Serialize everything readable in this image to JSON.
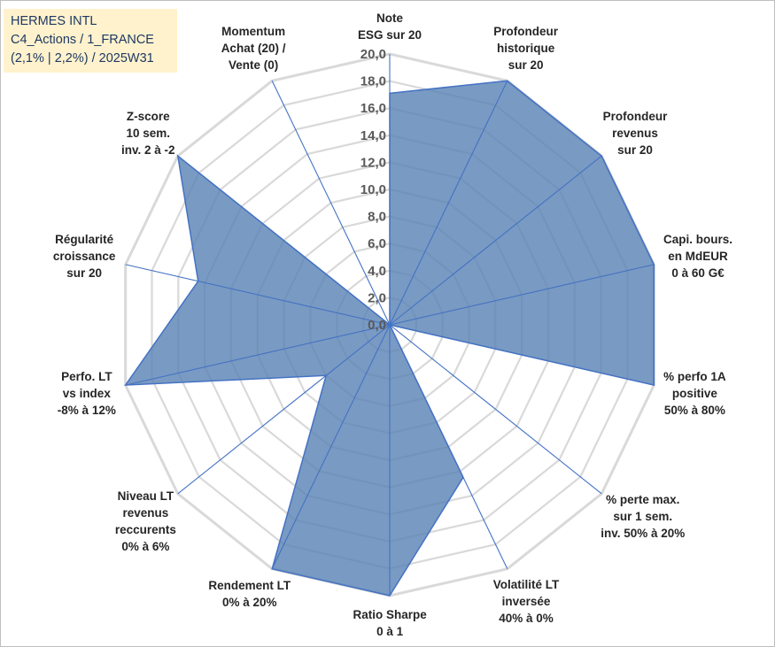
{
  "info": {
    "line1": "HERMES INTL",
    "line2": "C4_Actions / 1_FRANCE",
    "line3": "(2,1% | 2,2%) / 2025W31"
  },
  "chart_data": {
    "type": "radar",
    "rmin": 0,
    "rmax": 20,
    "tick_step": 2,
    "tick_labels": [
      "0,0",
      "2,0",
      "4,0",
      "6,0",
      "8,0",
      "10,0",
      "12,0",
      "14,0",
      "16,0",
      "18,0",
      "20,0"
    ],
    "grid": true,
    "axes": [
      {
        "lines": [
          "Note",
          "ESG sur 20"
        ]
      },
      {
        "lines": [
          "Profondeur",
          "historique",
          "sur 20"
        ]
      },
      {
        "lines": [
          "Profondeur",
          "revenus",
          "sur 20"
        ]
      },
      {
        "lines": [
          "Capi. bours.",
          "en MdEUR",
          "0 à 60 G€"
        ]
      },
      {
        "lines": [
          "% perfo 1A",
          "positive",
          "50% à 80%"
        ]
      },
      {
        "lines": [
          "% perte max.",
          "sur 1 sem.",
          "inv. 50% à 20%"
        ]
      },
      {
        "lines": [
          "Volatilité LT",
          "inversée",
          "40% à 0%"
        ]
      },
      {
        "lines": [
          "Ratio Sharpe",
          "0 à 1"
        ]
      },
      {
        "lines": [
          "Rendement LT",
          "0% à 20%"
        ]
      },
      {
        "lines": [
          "Niveau LT",
          "revenus",
          "reccurents",
          "0% à 6%"
        ]
      },
      {
        "lines": [
          "Perfo. LT",
          "vs index",
          "-8% à 12%"
        ]
      },
      {
        "lines": [
          "Régularité",
          "croissance",
          "sur 20"
        ]
      },
      {
        "lines": [
          "Z-score",
          "10 sem.",
          "inv. 2 à -2"
        ]
      },
      {
        "lines": [
          "Momentum",
          "Achat (20) /",
          "Vente (0)"
        ]
      }
    ],
    "values": [
      17.1,
      20.0,
      20.0,
      20.0,
      20.0,
      0.0,
      12.5,
      20.0,
      20.0,
      6.0,
      20.0,
      14.5,
      20.0,
      0.0
    ],
    "colors": {
      "fill": "#5b84b5",
      "fill_opacity": 0.82,
      "outline": "#4472c4",
      "grid": "#d9d9d9",
      "axis": "#4472c4"
    }
  }
}
